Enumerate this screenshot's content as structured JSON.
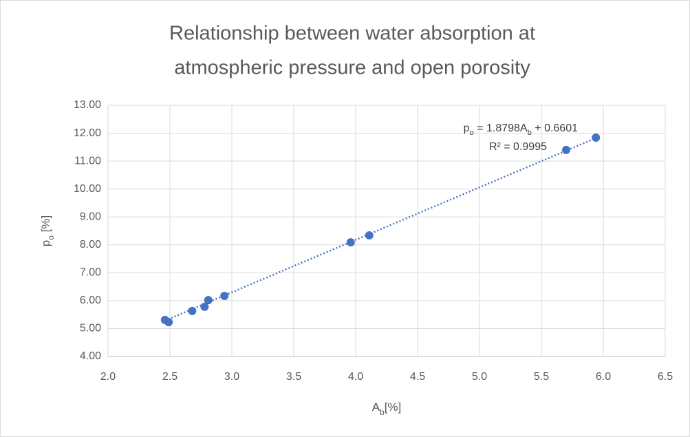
{
  "chart_data": {
    "type": "scatter",
    "title": [
      "Relationship between water absorption at",
      "atmospheric pressure and open porosity"
    ],
    "x_label": [
      "A",
      "b",
      "[%]"
    ],
    "y_label": [
      "p",
      "o",
      " [%]"
    ],
    "x": [
      2.46,
      2.49,
      2.68,
      2.78,
      2.81,
      2.94,
      3.96,
      4.11,
      5.7,
      5.94
    ],
    "series": [
      {
        "color": "#4472c4",
        "values": [
          5.31,
          5.23,
          5.63,
          5.78,
          6.02,
          6.17,
          8.09,
          8.34,
          11.4,
          11.84
        ]
      }
    ],
    "xlim": [
      2.0,
      6.5
    ],
    "xticks": [
      {
        "value": 2.0,
        "label": "2.0"
      },
      {
        "value": 2.5,
        "label": "2.5"
      },
      {
        "value": 3.0,
        "label": "3.0"
      },
      {
        "value": 3.5,
        "label": "3.5"
      },
      {
        "value": 4.0,
        "label": "4.0"
      },
      {
        "value": 4.5,
        "label": "4.5"
      },
      {
        "value": 5.0,
        "label": "5.0"
      },
      {
        "value": 5.5,
        "label": "5.5"
      },
      {
        "value": 6.0,
        "label": "6.0"
      },
      {
        "value": 6.5,
        "label": "6.5"
      }
    ],
    "ylim": [
      4,
      13
    ],
    "yticks": [
      {
        "value": 4,
        "label": "4.00"
      },
      {
        "value": 5,
        "label": "5.00"
      },
      {
        "value": 6,
        "label": "6.00"
      },
      {
        "value": 7,
        "label": "7.00"
      },
      {
        "value": 8,
        "label": "8.00"
      },
      {
        "value": 9,
        "label": "9.00"
      },
      {
        "value": 10,
        "label": "10.00"
      },
      {
        "value": 11,
        "label": "11.00"
      },
      {
        "value": 12,
        "label": "12.00"
      },
      {
        "value": 13,
        "label": "13.00"
      }
    ],
    "grid": true,
    "trendline": {
      "slope": 1.8798,
      "intercept": 0.6601,
      "equation": [
        "p",
        "o",
        " = 1.8798A",
        "b",
        " + 0.6601"
      ],
      "r2": "R² = 0.9995"
    }
  }
}
